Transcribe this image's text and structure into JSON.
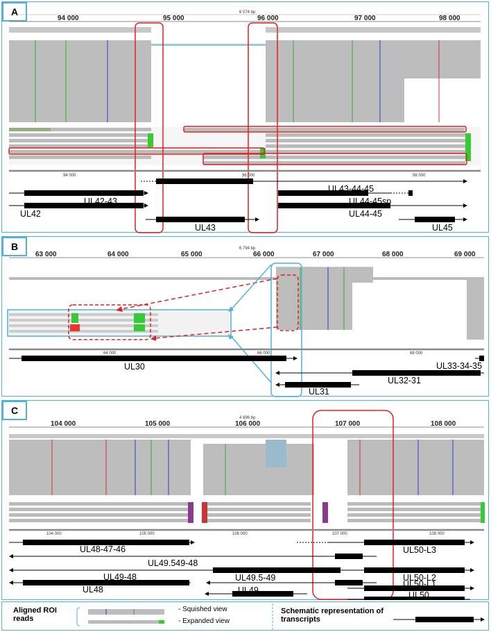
{
  "panels": [
    {
      "tag": "A",
      "bp_span": "6 074 bp",
      "ticks": [
        "94 000",
        "95 000",
        "96 000",
        "97 000",
        "98 000"
      ],
      "scale_ticks": [
        "94 000",
        "96 000",
        "98 000"
      ],
      "transcripts": [
        "UL42-43",
        "UL42",
        "UL43",
        "UL43-44-45",
        "UL44-45sp",
        "UL44-45",
        "UL45"
      ]
    },
    {
      "tag": "B",
      "bp_span": "6 794 bp",
      "ticks": [
        "63 000",
        "64 000",
        "65 000",
        "66 000",
        "67 000",
        "68 000",
        "69 000"
      ],
      "scale_ticks": [
        "64 000",
        "66 000",
        "68 000"
      ],
      "transcripts": [
        "UL30",
        "UL33-34-35",
        "UL32-31",
        "UL31"
      ]
    },
    {
      "tag": "C",
      "bp_span": "4 696 bp",
      "ticks": [
        "104 000",
        "105 000",
        "106 000",
        "107 000",
        "108 000"
      ],
      "scale_ticks": [
        "104 000",
        "105 000",
        "106 000",
        "107 000",
        "108 000"
      ],
      "transcripts": [
        "UL48-47-46",
        "UL49.549-48",
        "UL50-L3",
        "UL49-48",
        "UL50-L2",
        "UL48",
        "UL49.5-49",
        "UL49",
        "UL50-L1",
        "UL50"
      ]
    }
  ],
  "legend": {
    "aligned_reads": "Aligned ROI reads",
    "squished": "- Squished view",
    "expanded": "- Expanded view",
    "schematic": "Schematic representation of transcripts"
  },
  "colors": {
    "panel_border": "#4fb3d9",
    "highlight": "#e02020",
    "callout": "#4fb3d9",
    "read_gray": "#b8b8b8"
  }
}
